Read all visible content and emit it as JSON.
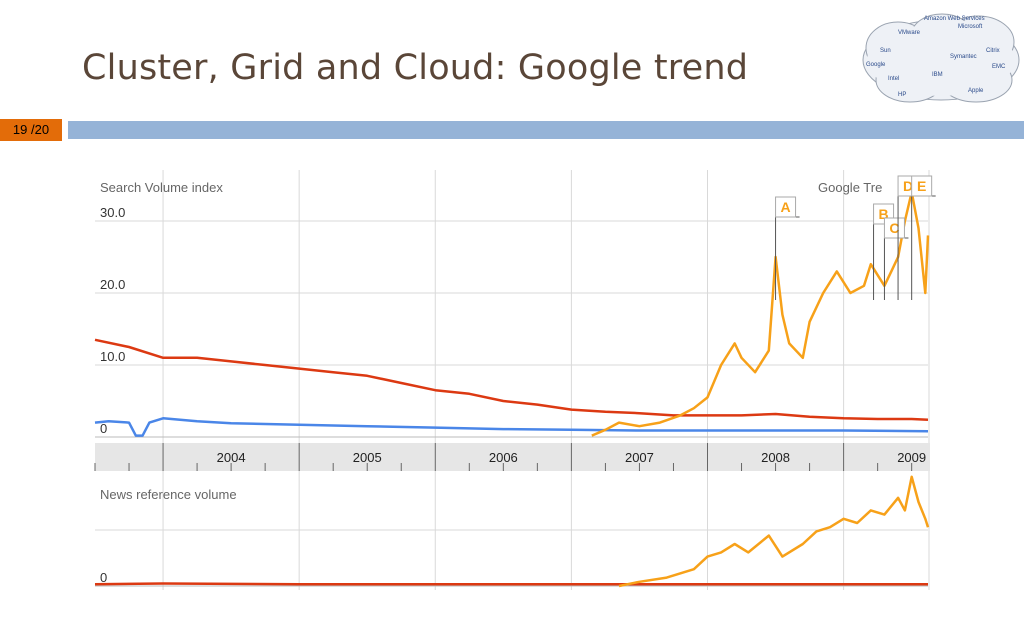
{
  "slide": {
    "title": "Cluster, Grid and Cloud:  Google trend",
    "page_number": "19 /20"
  },
  "colors": {
    "title": "#5a4638",
    "page_badge": "#e36c09",
    "header_bar": "#95b3d7",
    "cluster": "#dc3912",
    "grid": "#4a86e8",
    "cloud": "#f7a119"
  },
  "logo_cloud": {
    "labels": [
      "Sun",
      "Google",
      "IBM",
      "EMC",
      "Microsoft",
      "Citrix",
      "VMware",
      "Symantec",
      "HP",
      "Intel",
      "Apple",
      "Amazon Web Services"
    ]
  },
  "chart_data": {
    "type": "line",
    "panels": [
      {
        "title": "Search Volume index",
        "ylim": [
          0,
          32
        ],
        "y_ticks": [
          "0",
          "10.0",
          "20.0",
          "30.0"
        ],
        "watermark": "Google Tre",
        "series": [
          {
            "key": "cluster",
            "x": [
              2003.5,
              2003.75,
              2004.0,
              2004.25,
              2004.5,
              2004.75,
              2005.0,
              2005.25,
              2005.5,
              2005.75,
              2006.0,
              2006.25,
              2006.5,
              2006.75,
              2007.0,
              2007.25,
              2007.5,
              2007.75,
              2008.0,
              2008.25,
              2008.5,
              2008.75,
              2009.0,
              2009.25,
              2009.5,
              2009.62
            ],
            "y": [
              13.5,
              12.5,
              11.0,
              11.0,
              10.5,
              10.0,
              9.5,
              9.0,
              8.5,
              7.5,
              6.5,
              6.0,
              5.0,
              4.5,
              3.8,
              3.5,
              3.3,
              3.0,
              3.0,
              3.0,
              3.2,
              2.8,
              2.6,
              2.5,
              2.5,
              2.4
            ]
          },
          {
            "key": "grid",
            "x": [
              2003.5,
              2003.6,
              2003.75,
              2003.8,
              2003.85,
              2003.9,
              2004.0,
              2004.25,
              2004.5,
              2004.75,
              2005.0,
              2005.5,
              2006.0,
              2006.5,
              2007.0,
              2007.5,
              2008.0,
              2008.5,
              2009.0,
              2009.62
            ],
            "y": [
              2.0,
              2.2,
              2.0,
              0.2,
              0.2,
              2.0,
              2.6,
              2.2,
              1.9,
              1.8,
              1.7,
              1.5,
              1.3,
              1.1,
              1.0,
              0.9,
              0.9,
              0.9,
              0.9,
              0.8
            ]
          },
          {
            "key": "cloud",
            "x": [
              2007.15,
              2007.25,
              2007.35,
              2007.5,
              2007.65,
              2007.8,
              2007.9,
              2008.0,
              2008.1,
              2008.2,
              2008.25,
              2008.35,
              2008.45,
              2008.5,
              2008.55,
              2008.6,
              2008.7,
              2008.75,
              2008.85,
              2008.95,
              2009.05,
              2009.15,
              2009.2,
              2009.3,
              2009.35,
              2009.4,
              2009.45,
              2009.5,
              2009.55,
              2009.6,
              2009.62
            ],
            "y": [
              0.2,
              1.0,
              2.0,
              1.5,
              2.0,
              3.0,
              4.0,
              5.5,
              10.0,
              13.0,
              11.0,
              9.0,
              12.0,
              25.0,
              17.0,
              13.0,
              11.0,
              16.0,
              20.0,
              23.0,
              20.0,
              21.0,
              24.0,
              21.0,
              23.0,
              25.0,
              30.0,
              34.0,
              29.0,
              20.0,
              28.0
            ]
          }
        ],
        "annotations": [
          {
            "label": "A",
            "x": 2008.5
          },
          {
            "label": "B",
            "x": 2009.22
          },
          {
            "label": "C",
            "x": 2009.3
          },
          {
            "label": "D",
            "x": 2009.4
          },
          {
            "label": "E",
            "x": 2009.5
          }
        ]
      },
      {
        "title": "News reference volume",
        "ylim": [
          0,
          14
        ],
        "y_ticks": [
          "0"
        ],
        "series": [
          {
            "key": "cluster",
            "x": [
              2003.5,
              2004.0,
              2005.0,
              2006.0,
              2007.0,
              2008.0,
              2009.0,
              2009.62
            ],
            "y": [
              0.2,
              0.3,
              0.2,
              0.2,
              0.2,
              0.2,
              0.2,
              0.2
            ]
          },
          {
            "key": "cloud",
            "x": [
              2007.35,
              2007.5,
              2007.7,
              2007.9,
              2008.0,
              2008.1,
              2008.2,
              2008.3,
              2008.45,
              2008.55,
              2008.7,
              2008.8,
              2008.9,
              2009.0,
              2009.1,
              2009.2,
              2009.3,
              2009.4,
              2009.45,
              2009.5,
              2009.55,
              2009.6,
              2009.62
            ],
            "y": [
              0.0,
              0.5,
              1.0,
              2.0,
              3.5,
              4.0,
              5.0,
              4.0,
              6.0,
              3.5,
              5.0,
              6.5,
              7.0,
              8.0,
              7.5,
              9.0,
              8.5,
              10.5,
              9.0,
              13.0,
              10.0,
              8.0,
              7.0
            ]
          }
        ]
      }
    ],
    "x_axis": {
      "categories": [
        "2004",
        "2005",
        "2006",
        "2007",
        "2008",
        "2009"
      ],
      "range": [
        2003.5,
        2009.62
      ]
    },
    "grid": true,
    "legend": "none"
  }
}
